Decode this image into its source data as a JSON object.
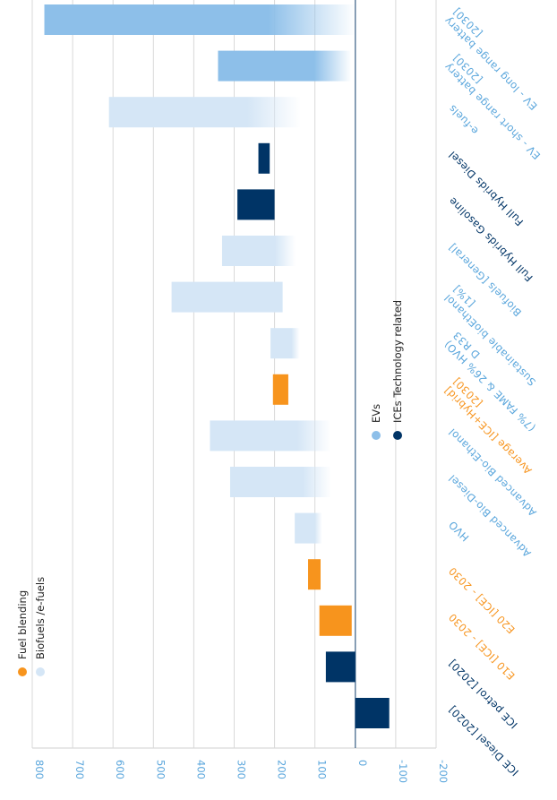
{
  "chart_data": {
    "type": "range-bar",
    "categories": [
      [
        "EV - long range battery",
        "[2030]"
      ],
      [
        "EV - short range battery",
        "[2030]"
      ],
      [
        "e-fuels"
      ],
      [
        "Full Hybrids Diesel"
      ],
      [
        "Full Hybrids Gasoline"
      ],
      [
        "Biofuels [General]"
      ],
      [
        "Sustainable bioEthanol",
        "[1%]"
      ],
      [
        "(7% FAME & 26% HVO)",
        "D R33"
      ],
      [
        "Average [ICE+Hybrid]",
        "[2030]"
      ],
      [
        "Advanced Bio-Ethanol"
      ],
      [
        "Advanced Bio-Diesel"
      ],
      [
        "HVO"
      ],
      [
        "E20 [ICE] - 2030"
      ],
      [
        "E10 [ICE] - 2030"
      ],
      [
        "ICE petrol [2020]"
      ],
      [
        "ICE Diesel [2020]"
      ]
    ],
    "starts": [
      770,
      340,
      610,
      240,
      292,
      330,
      455,
      210,
      204,
      360,
      310,
      150,
      117,
      89,
      73,
      0
    ],
    "ends": [
      0,
      10,
      135,
      212,
      200,
      148,
      180,
      138,
      166,
      60,
      60,
      82,
      86,
      9,
      0,
      -84
    ],
    "colors": [
      "#8dbfe9",
      "#8dbfe9",
      "#d5e6f6",
      "#003466",
      "#003466",
      "#d5e6f6",
      "#d5e6f6",
      "#d5e6f6",
      "#f7941d",
      "#d5e6f6",
      "#d5e6f6",
      "#d5e6f6",
      "#f7941d",
      "#f7941d",
      "#003466",
      "#003466"
    ],
    "label_colors": [
      "#5aa6dc",
      "#5aa6dc",
      "#5aa6dc",
      "#003466",
      "#003466",
      "#5aa6dc",
      "#5aa6dc",
      "#5aa6dc",
      "#f7941d",
      "#5aa6dc",
      "#5aa6dc",
      "#5aa6dc",
      "#f7941d",
      "#f7941d",
      "#003466",
      "#003466"
    ],
    "fade": [
      true,
      true,
      true,
      false,
      false,
      true,
      false,
      true,
      false,
      true,
      true,
      true,
      false,
      false,
      false,
      false
    ],
    "xlim": [
      800,
      -200
    ],
    "xticks": [
      800,
      700,
      600,
      500,
      400,
      300,
      200,
      100,
      0,
      -100,
      -200
    ],
    "grid": true,
    "legend": [
      {
        "name": "Fuel blending",
        "color": "#f7941d"
      },
      {
        "name": "Biofuels /e-fuels",
        "color": "#d5e6f6"
      },
      {
        "name": "EVs",
        "color": "#8dbfe9"
      },
      {
        "name": "ICEs Technology related",
        "color": "#003466"
      }
    ]
  }
}
